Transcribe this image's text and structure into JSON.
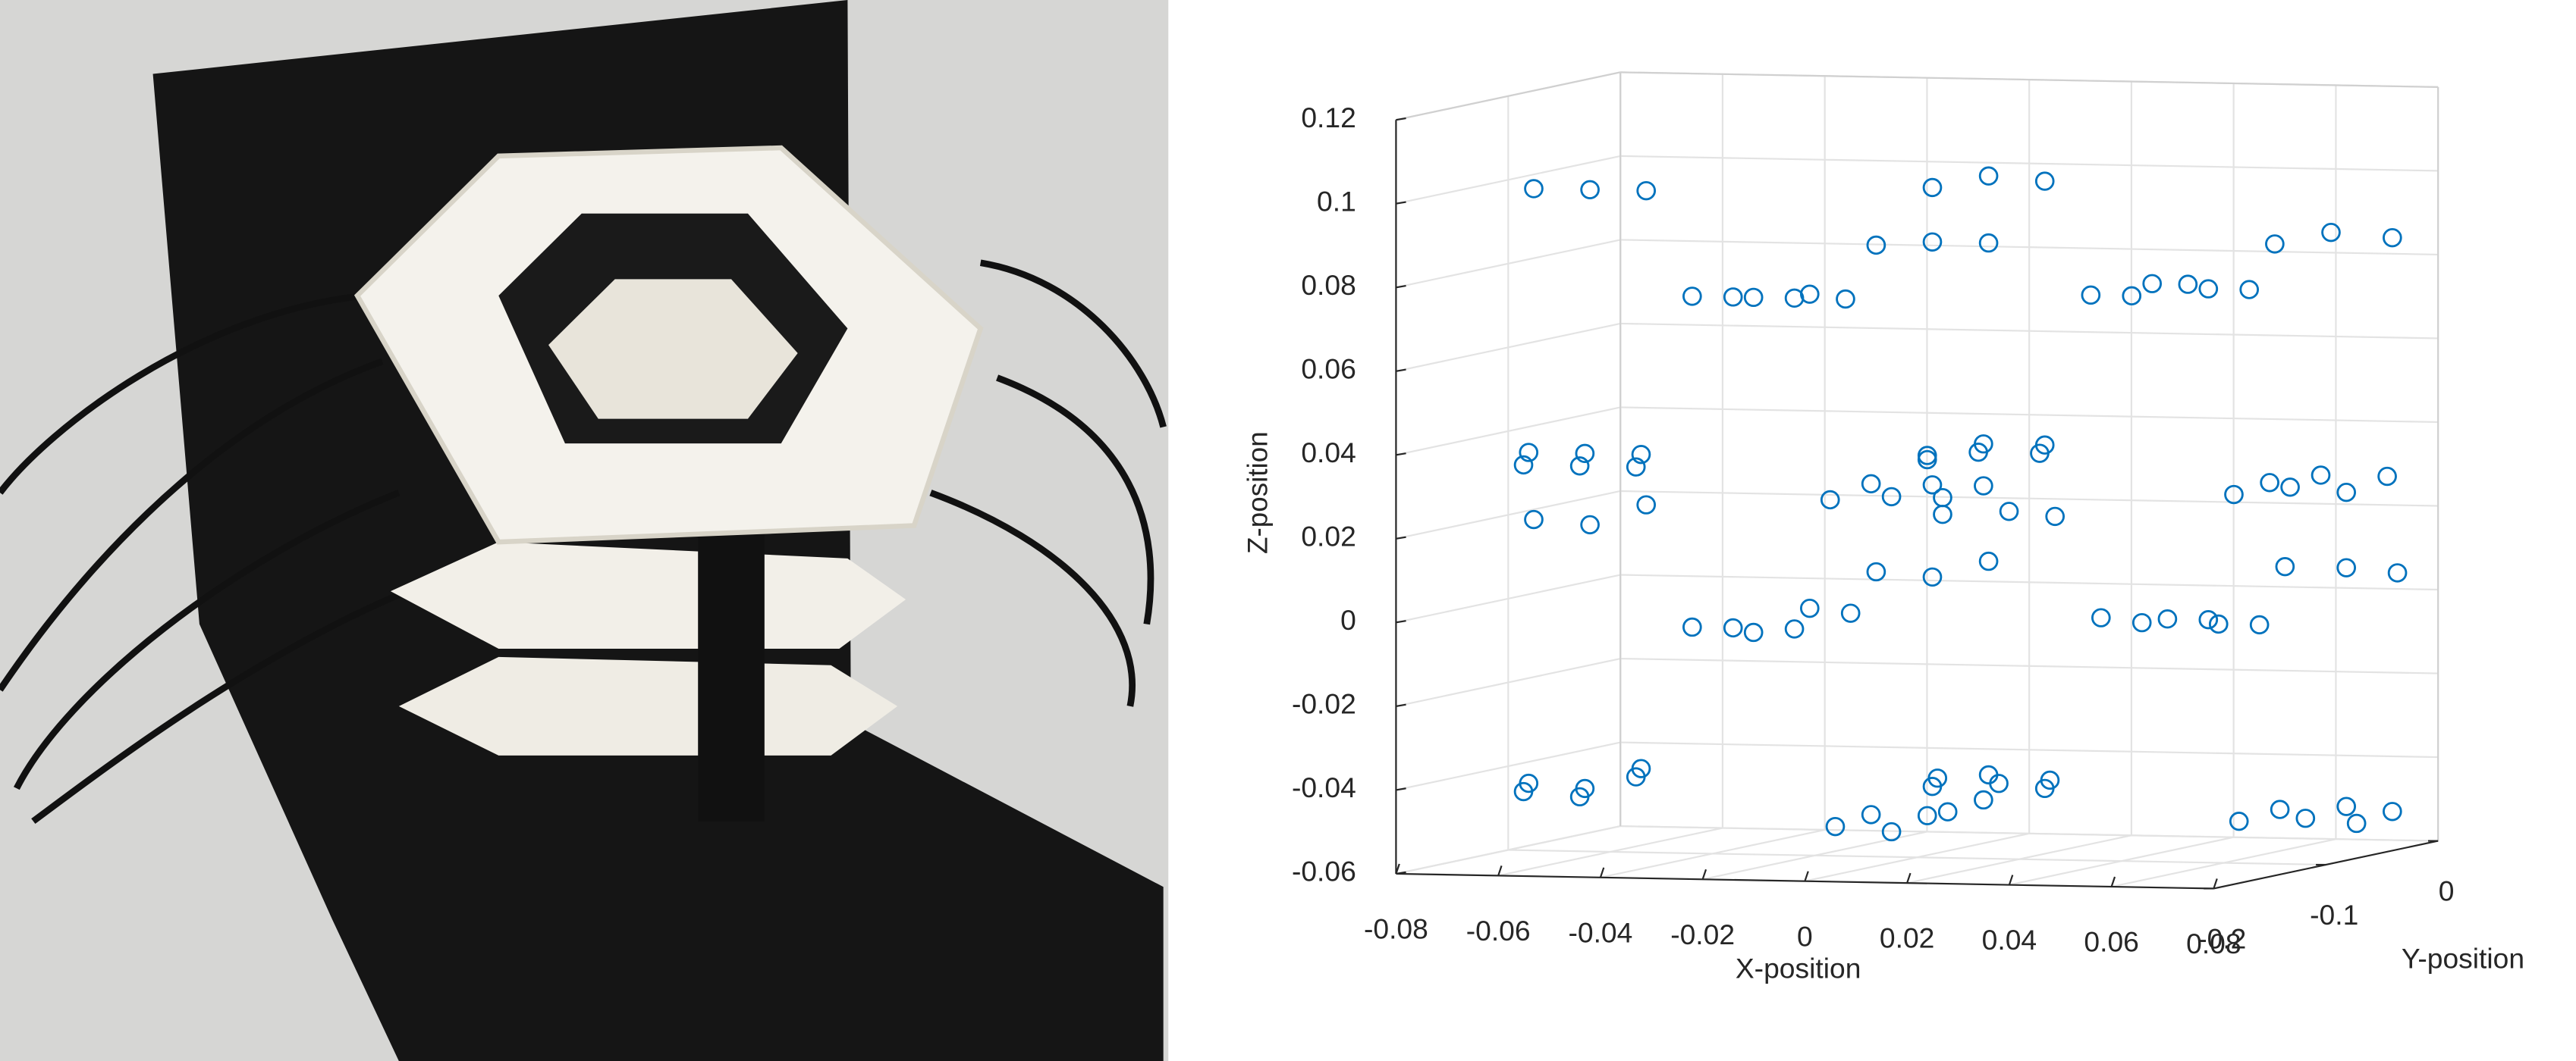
{
  "chart_data": {
    "type": "scatter3d",
    "xlabel": "X-position",
    "ylabel": "Y-position",
    "zlabel": "Z-position",
    "color": "#0072bd",
    "grid": true,
    "xlim": [
      -0.08,
      0.08
    ],
    "ylim": [
      -0.2,
      0
    ],
    "zlim": [
      -0.06,
      0.12
    ],
    "xticks": [
      -0.08,
      -0.06,
      -0.04,
      -0.02,
      0,
      0.02,
      0.04,
      0.06,
      0.08
    ],
    "yticks": [
      -0.2,
      -0.1,
      0
    ],
    "zticks": [
      -0.06,
      -0.04,
      -0.02,
      0,
      0.02,
      0.04,
      0.06,
      0.08,
      0.1,
      0.12
    ],
    "x": [
      -0.075,
      -0.064,
      -0.053,
      0.003,
      0.014,
      0.025,
      -0.008,
      0.003,
      0.014,
      0.07,
      0.081,
      0.093,
      -0.044,
      -0.036,
      -0.032,
      -0.024,
      -0.021,
      -0.014,
      0.034,
      0.042,
      0.046,
      0.053,
      0.057,
      0.065,
      -0.077,
      -0.076,
      -0.066,
      -0.065,
      -0.055,
      -0.054,
      -0.075,
      -0.064,
      -0.053,
      -0.017,
      -0.009,
      -0.005,
      0.002,
      0.002,
      0.003,
      0.005,
      0.005,
      0.013,
      0.012,
      0.013,
      0.018,
      0.024,
      0.025,
      0.027,
      0.062,
      0.069,
      0.073,
      0.079,
      0.084,
      0.092,
      0.072,
      0.084,
      0.094,
      -0.008,
      0.003,
      0.014,
      -0.044,
      -0.036,
      -0.032,
      -0.024,
      -0.021,
      -0.013,
      0.036,
      0.044,
      0.049,
      0.057,
      0.059,
      0.067,
      -0.077,
      -0.076,
      -0.066,
      -0.065,
      -0.055,
      -0.054,
      -0.016,
      -0.009,
      -0.005,
      0.002,
      0.003,
      0.004,
      0.006,
      0.013,
      0.014,
      0.016,
      0.025,
      0.026,
      0.063,
      0.071,
      0.076,
      0.084,
      0.086,
      0.093
    ],
    "y": [
      -0.1,
      -0.1,
      -0.1,
      -0.1,
      -0.1,
      -0.1,
      -0.1,
      -0.1,
      -0.1,
      -0.1,
      -0.1,
      -0.1,
      -0.1,
      -0.1,
      -0.1,
      -0.1,
      -0.1,
      -0.1,
      -0.1,
      -0.1,
      -0.1,
      -0.1,
      -0.1,
      -0.1,
      -0.1,
      -0.1,
      -0.1,
      -0.1,
      -0.1,
      -0.1,
      -0.1,
      -0.1,
      -0.1,
      -0.1,
      -0.1,
      -0.1,
      -0.1,
      -0.1,
      -0.1,
      -0.1,
      -0.1,
      -0.1,
      -0.1,
      -0.1,
      -0.1,
      -0.1,
      -0.1,
      -0.1,
      -0.1,
      -0.1,
      -0.1,
      -0.1,
      -0.1,
      -0.1,
      -0.1,
      -0.1,
      -0.1,
      -0.1,
      -0.1,
      -0.1,
      -0.1,
      -0.1,
      -0.1,
      -0.1,
      -0.1,
      -0.1,
      -0.1,
      -0.1,
      -0.1,
      -0.1,
      -0.1,
      -0.1,
      -0.1,
      -0.1,
      -0.1,
      -0.1,
      -0.1,
      -0.1,
      -0.1,
      -0.1,
      -0.1,
      -0.1,
      -0.1,
      -0.1,
      -0.1,
      -0.1,
      -0.1,
      -0.1,
      -0.1,
      -0.1,
      -0.1,
      -0.1,
      -0.1,
      -0.1,
      -0.1,
      -0.1
    ],
    "z": [
      0.098,
      0.098,
      0.098,
      0.1,
      0.103,
      0.102,
      0.086,
      0.087,
      0.087,
      0.088,
      0.091,
      0.09,
      0.073,
      0.073,
      0.073,
      0.073,
      0.074,
      0.073,
      0.075,
      0.075,
      0.078,
      0.078,
      0.077,
      0.077,
      0.032,
      0.035,
      0.032,
      0.035,
      0.032,
      0.035,
      0.019,
      0.018,
      0.023,
      0.025,
      0.029,
      0.026,
      0.035,
      0.036,
      0.029,
      0.026,
      0.022,
      0.039,
      0.037,
      0.029,
      0.023,
      0.037,
      0.039,
      0.022,
      0.028,
      0.031,
      0.03,
      0.033,
      0.029,
      0.033,
      0.011,
      0.011,
      0.01,
      0.008,
      0.007,
      0.011,
      -0.006,
      -0.006,
      -0.007,
      -0.006,
      -0.001,
      -0.002,
      -0.002,
      -0.003,
      -0.002,
      -0.002,
      -0.003,
      -0.003,
      -0.046,
      -0.044,
      -0.047,
      -0.045,
      -0.042,
      -0.04,
      -0.053,
      -0.05,
      -0.054,
      -0.05,
      -0.043,
      -0.041,
      -0.049,
      -0.046,
      -0.04,
      -0.042,
      -0.043,
      -0.041,
      -0.05,
      -0.047,
      -0.049,
      -0.046,
      -0.05,
      -0.047
    ]
  }
}
